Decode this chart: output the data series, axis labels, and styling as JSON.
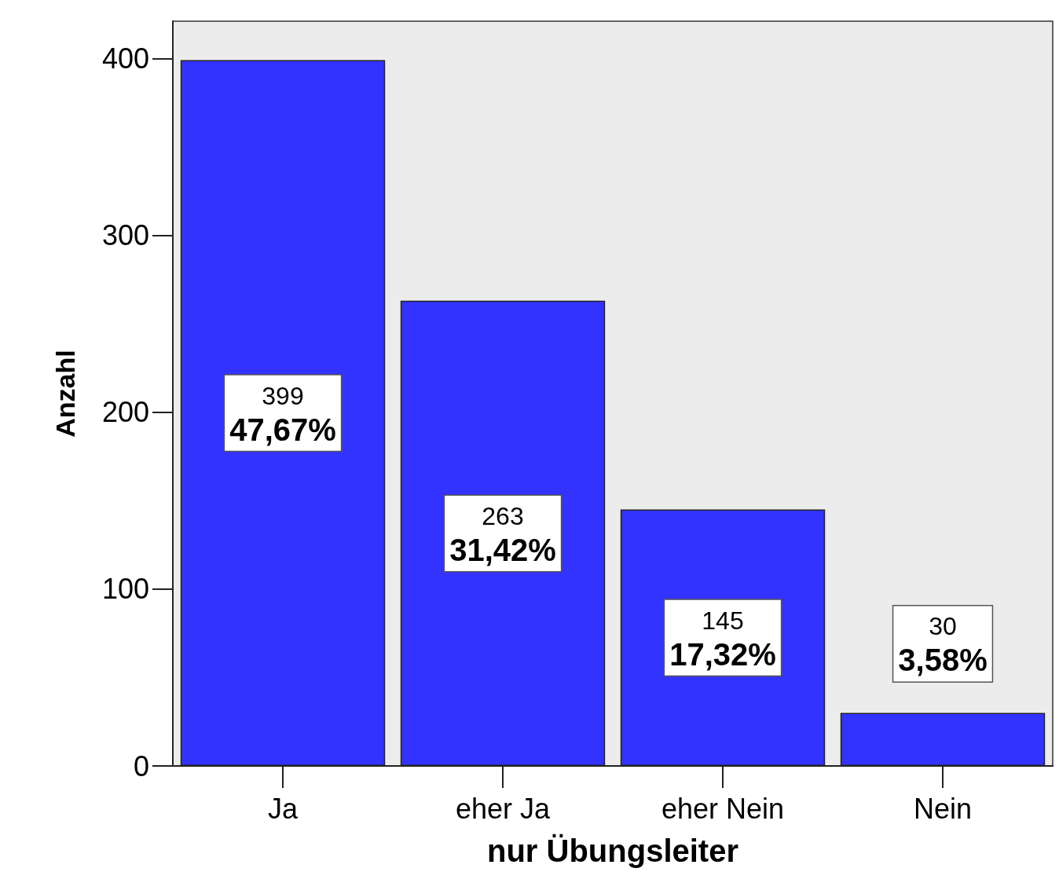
{
  "chart_data": {
    "type": "bar",
    "xlabel": "nur Übungsleiter",
    "ylabel": "Anzahl",
    "categories": [
      "Ja",
      "eher Ja",
      "eher Nein",
      "Nein"
    ],
    "values": [
      399,
      263,
      145,
      30
    ],
    "value_labels": [
      "399\n47,67%",
      "263\n31,42%",
      "145\n17,32%",
      "30\n3,58%"
    ],
    "color": "#3333ff",
    "ylim": [
      0,
      421
    ],
    "yticks": [
      0,
      100,
      200,
      300,
      400
    ],
    "grid": false
  }
}
